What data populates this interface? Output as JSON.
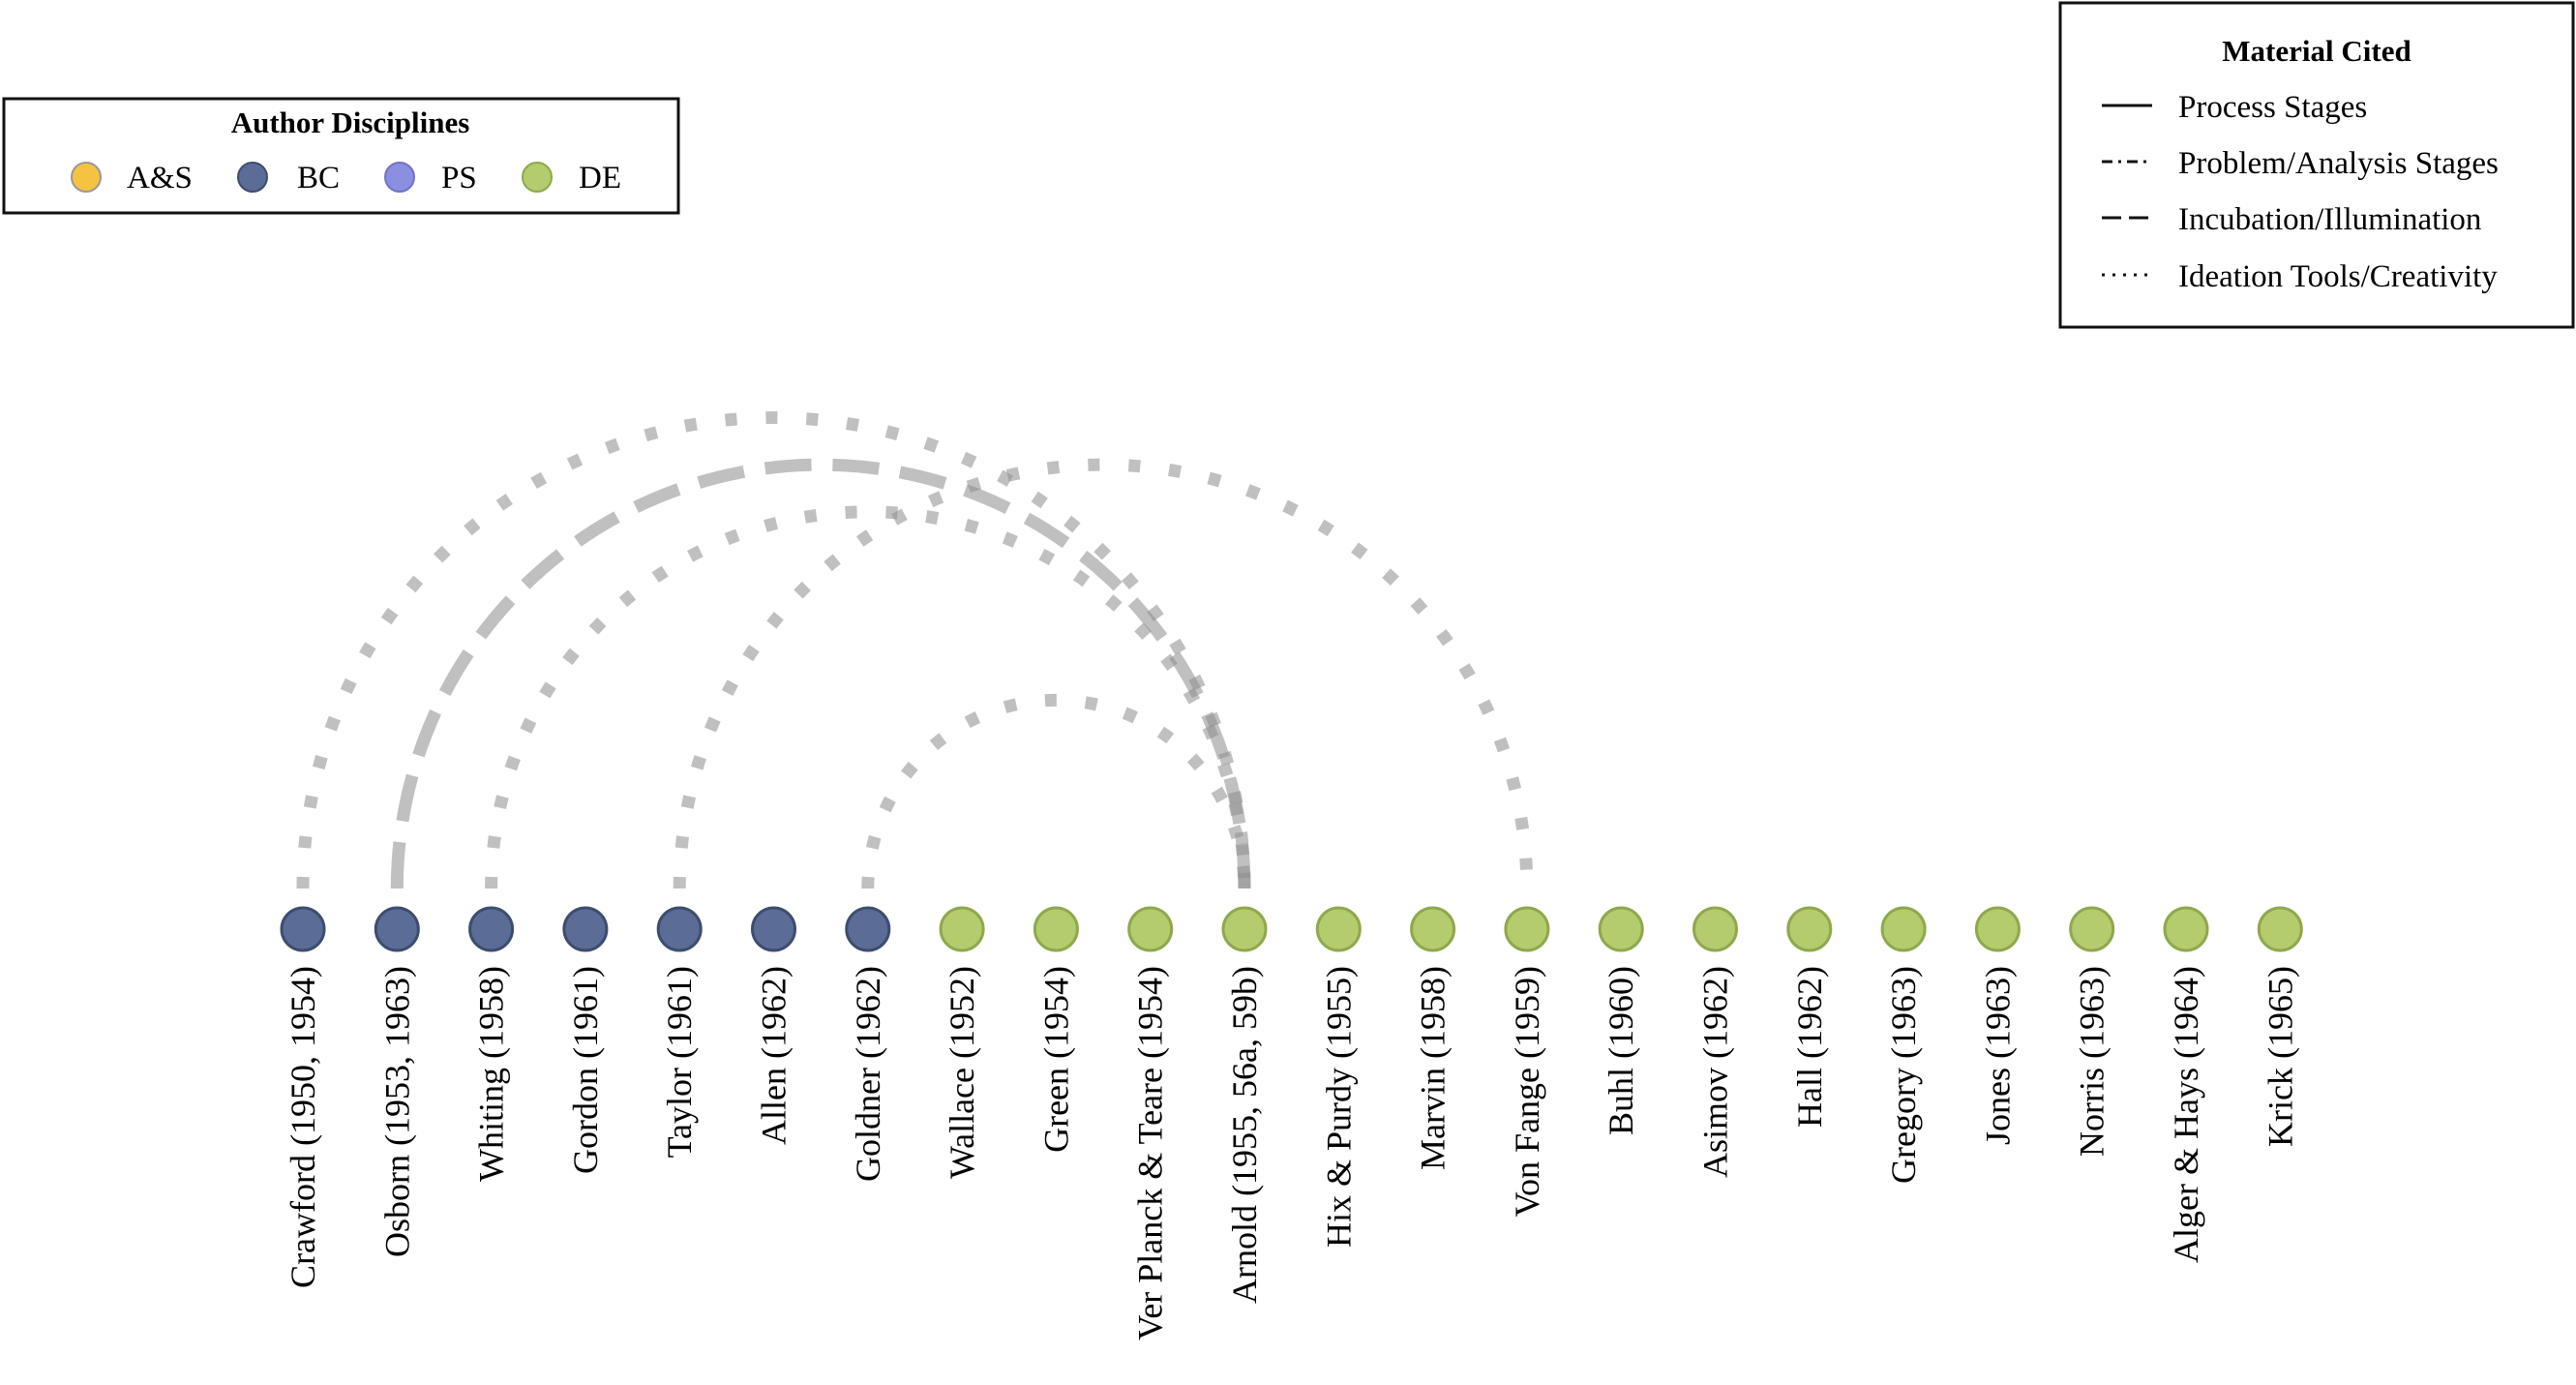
{
  "discipline_legend": {
    "title": "Author Disciplines",
    "entries": [
      {
        "label": "A&S",
        "color": "#f5c242"
      },
      {
        "label": "BC",
        "color": "#5b6d96"
      },
      {
        "label": "PS",
        "color": "#8a8fe0"
      },
      {
        "label": "DE",
        "color": "#b4cc6e"
      }
    ]
  },
  "material_legend": {
    "title": "Material Cited",
    "entries": [
      {
        "label": "Process Stages",
        "style": "solid"
      },
      {
        "label": "Problem/Analysis Stages",
        "style": "dashdot"
      },
      {
        "label": "Incubation/Illumination",
        "style": "dashed"
      },
      {
        "label": "Ideation Tools/Creativity",
        "style": "dotted"
      }
    ]
  },
  "authors": [
    {
      "label": "Crawford (1950, 1954)",
      "discipline": "BC"
    },
    {
      "label": "Osborn (1953, 1963)",
      "discipline": "BC"
    },
    {
      "label": "Whiting (1958)",
      "discipline": "BC"
    },
    {
      "label": "Gordon (1961)",
      "discipline": "BC"
    },
    {
      "label": "Taylor (1961)",
      "discipline": "BC"
    },
    {
      "label": "Allen (1962)",
      "discipline": "BC"
    },
    {
      "label": "Goldner (1962)",
      "discipline": "BC"
    },
    {
      "label": "Wallace (1952)",
      "discipline": "DE"
    },
    {
      "label": "Green (1954)",
      "discipline": "DE"
    },
    {
      "label": "Ver Planck & Teare (1954)",
      "discipline": "DE"
    },
    {
      "label": "Arnold (1955, 56a, 59b)",
      "discipline": "DE"
    },
    {
      "label": "Hix & Purdy (1955)",
      "discipline": "DE"
    },
    {
      "label": "Marvin (1958)",
      "discipline": "DE"
    },
    {
      "label": "Von Fange (1959)",
      "discipline": "DE"
    },
    {
      "label": "Buhl (1960)",
      "discipline": "DE"
    },
    {
      "label": "Asimov (1962)",
      "discipline": "DE"
    },
    {
      "label": "Hall (1962)",
      "discipline": "DE"
    },
    {
      "label": "Gregory (1963)",
      "discipline": "DE"
    },
    {
      "label": "Jones (1963)",
      "discipline": "DE"
    },
    {
      "label": "Norris (1963)",
      "discipline": "DE"
    },
    {
      "label": "Alger & Hays (1964)",
      "discipline": "DE"
    },
    {
      "label": "Krick (1965)",
      "discipline": "DE"
    }
  ],
  "citations": [
    {
      "from": 0,
      "to": 10,
      "style": "dotted"
    },
    {
      "from": 1,
      "to": 10,
      "style": "dashed"
    },
    {
      "from": 2,
      "to": 10,
      "style": "dotted"
    },
    {
      "from": 4,
      "to": 13,
      "style": "dotted"
    },
    {
      "from": 6,
      "to": 10,
      "style": "dotted"
    }
  ]
}
